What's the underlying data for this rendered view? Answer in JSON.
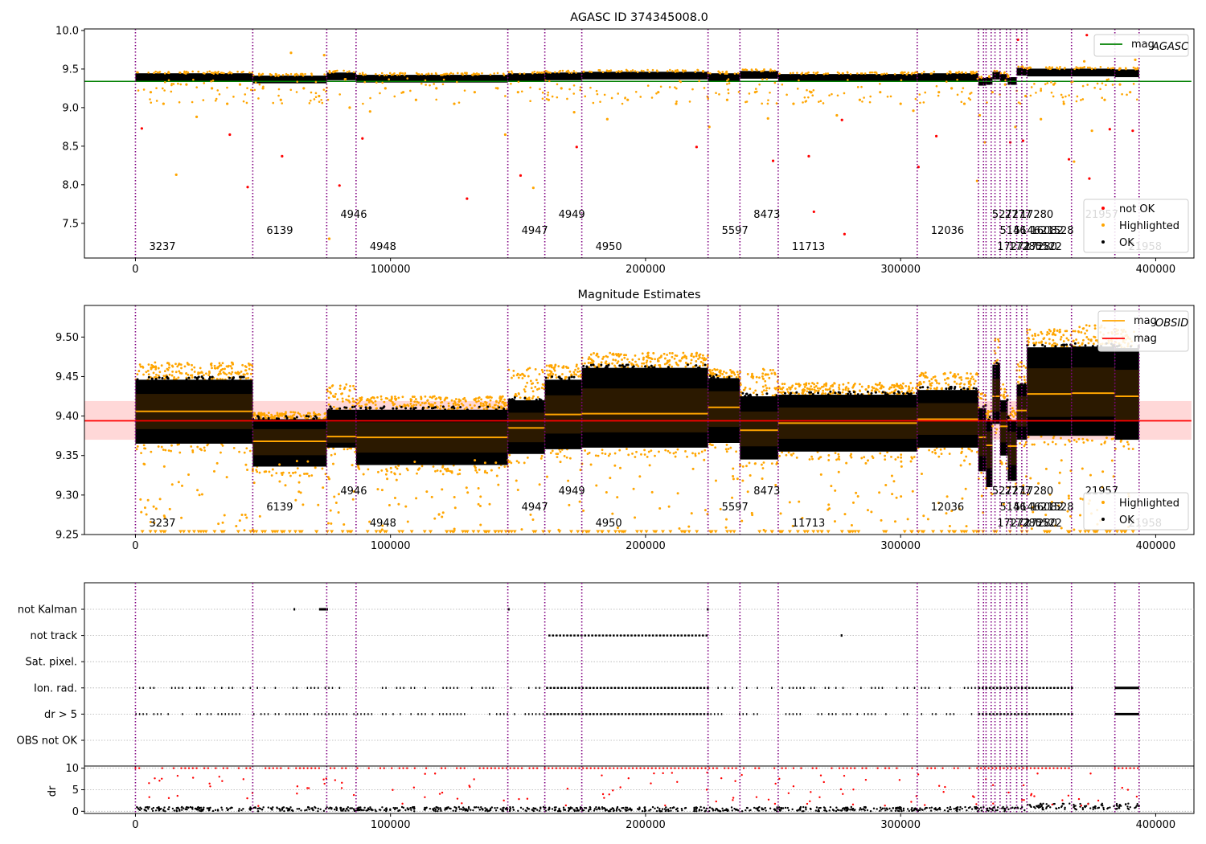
{
  "figure": {
    "background": "#ffffff"
  },
  "chart_data": [
    {
      "type": "scatter",
      "title": "AGASC ID 374345008.0",
      "xlabel": "",
      "ylabel": "",
      "xlim": [
        -20000,
        415000
      ],
      "ylim": [
        7.05,
        10.02
      ],
      "x_ticks": [
        0,
        100000,
        200000,
        300000,
        400000
      ],
      "y_ticks": [
        7.5,
        8.0,
        8.5,
        9.0,
        9.5,
        10.0
      ],
      "y_tick_labels": [
        "7.5",
        "8.0",
        "8.5",
        "9.0",
        "9.5",
        "10.0"
      ],
      "legend_top": {
        "placement": "top-right",
        "entries": [
          {
            "label": "mag",
            "sub": "AGASC",
            "color": "#008000",
            "kind": "line"
          }
        ]
      },
      "legend_bottom": {
        "placement": "bottom-right",
        "entries": [
          {
            "label": "not OK",
            "color": "#ff0000",
            "kind": "dot"
          },
          {
            "label": "Highlighted",
            "color": "#ffa500",
            "kind": "dot"
          },
          {
            "label": "OK",
            "color": "#000000",
            "kind": "dot"
          }
        ]
      },
      "agasc_mag": 9.34,
      "ok_band": {
        "color": "#000000"
      },
      "highlighted_points": [
        [
          6000,
          9.2
        ],
        [
          11000,
          9.05
        ],
        [
          16000,
          8.13
        ],
        [
          20000,
          9.3
        ],
        [
          24000,
          8.88
        ],
        [
          30000,
          9.25
        ],
        [
          36000,
          9.05
        ],
        [
          41000,
          9.3
        ],
        [
          50000,
          9.25
        ],
        [
          57000,
          9.1
        ],
        [
          61000,
          9.71
        ],
        [
          66000,
          9.25
        ],
        [
          72000,
          9.15
        ],
        [
          74000,
          9.68
        ],
        [
          76000,
          7.3
        ],
        [
          84000,
          9.0
        ],
        [
          92000,
          8.95
        ],
        [
          98000,
          9.25
        ],
        [
          105000,
          9.2
        ],
        [
          110000,
          9.1
        ],
        [
          118000,
          9.25
        ],
        [
          125000,
          9.05
        ],
        [
          133000,
          9.2
        ],
        [
          142000,
          9.25
        ],
        [
          145000,
          8.65
        ],
        [
          150000,
          9.2
        ],
        [
          156000,
          7.96
        ],
        [
          162000,
          9.1
        ],
        [
          167000,
          9.25
        ],
        [
          172000,
          8.94
        ],
        [
          185000,
          8.85
        ],
        [
          193000,
          9.1
        ],
        [
          205000,
          9.2
        ],
        [
          212000,
          9.05
        ],
        [
          225000,
          8.75
        ],
        [
          232000,
          9.1
        ],
        [
          243000,
          9.2
        ],
        [
          248000,
          8.86
        ],
        [
          258000,
          9.05
        ],
        [
          265000,
          9.2
        ],
        [
          275000,
          8.9
        ],
        [
          284000,
          9.1
        ],
        [
          292000,
          9.2
        ],
        [
          300000,
          9.05
        ],
        [
          305000,
          8.96
        ],
        [
          315000,
          9.2
        ],
        [
          320000,
          9.25
        ],
        [
          325000,
          9.05
        ],
        [
          330000,
          8.05
        ],
        [
          331000,
          8.9
        ],
        [
          333000,
          8.55
        ],
        [
          336000,
          9.2
        ],
        [
          341000,
          9.3
        ],
        [
          345000,
          8.75
        ],
        [
          349000,
          9.15
        ],
        [
          355000,
          8.85
        ],
        [
          360000,
          9.3
        ],
        [
          364000,
          9.05
        ],
        [
          368000,
          8.3
        ],
        [
          372000,
          9.6
        ],
        [
          375000,
          8.7
        ],
        [
          380000,
          9.1
        ],
        [
          386000,
          9.3
        ],
        [
          390000,
          9.2
        ],
        [
          392000,
          9.62
        ]
      ],
      "not_ok_points": [
        [
          2500,
          8.73
        ],
        [
          37000,
          8.65
        ],
        [
          44000,
          7.97
        ],
        [
          57500,
          8.37
        ],
        [
          80000,
          7.99
        ],
        [
          89000,
          8.6
        ],
        [
          130000,
          7.82
        ],
        [
          151000,
          8.12
        ],
        [
          173000,
          8.49
        ],
        [
          220000,
          8.49
        ],
        [
          250000,
          8.31
        ],
        [
          264000,
          8.37
        ],
        [
          266000,
          7.65
        ],
        [
          277000,
          8.84
        ],
        [
          278000,
          7.36
        ],
        [
          307000,
          8.23
        ],
        [
          314000,
          8.63
        ],
        [
          343000,
          8.55
        ],
        [
          346000,
          9.88
        ],
        [
          348000,
          8.57
        ],
        [
          366000,
          8.33
        ],
        [
          373000,
          9.94
        ],
        [
          374000,
          8.08
        ],
        [
          382000,
          8.72
        ],
        [
          391000,
          8.7
        ]
      ]
    },
    {
      "type": "scatter",
      "title": "Magnitude Estimates",
      "xlabel": "",
      "ylabel": "",
      "xlim": [
        -20000,
        415000
      ],
      "ylim": [
        9.25,
        9.54
      ],
      "x_ticks": [
        0,
        100000,
        200000,
        300000,
        400000
      ],
      "y_ticks": [
        9.25,
        9.3,
        9.35,
        9.4,
        9.45,
        9.5
      ],
      "y_tick_labels": [
        "9.25",
        "9.30",
        "9.35",
        "9.40",
        "9.45",
        "9.50"
      ],
      "legend_top": {
        "placement": "top-right",
        "entries": [
          {
            "label": "mag",
            "sub": "OBSID",
            "color": "#ffa500",
            "kind": "line"
          },
          {
            "label": "mag",
            "sub": "",
            "color": "#ff0000",
            "kind": "line"
          }
        ]
      },
      "legend_bottom": {
        "placement": "bottom-right",
        "entries": [
          {
            "label": "Highlighted",
            "color": "#ffa500",
            "kind": "dot"
          },
          {
            "label": "OK",
            "color": "#000000",
            "kind": "dot"
          }
        ]
      },
      "mag": 9.394,
      "mag_band": [
        9.37,
        9.419
      ],
      "obsid_segments": [
        {
          "x0": 0,
          "x1": 46000,
          "mean": 9.406,
          "lo": 9.365,
          "hi": 9.446,
          "hl_hi": 9.468
        },
        {
          "x0": 46000,
          "x1": 75000,
          "mean": 9.368,
          "lo": 9.336,
          "hi": 9.396,
          "hl_hi": 9.405
        },
        {
          "x0": 75000,
          "x1": 86500,
          "mean": 9.374,
          "lo": 9.36,
          "hi": 9.408,
          "hl_hi": 9.44
        },
        {
          "x0": 86500,
          "x1": 146000,
          "mean": 9.373,
          "lo": 9.338,
          "hi": 9.408,
          "hl_hi": 9.425
        },
        {
          "x0": 146000,
          "x1": 160500,
          "mean": 9.385,
          "lo": 9.352,
          "hi": 9.42,
          "hl_hi": 9.462
        },
        {
          "x0": 160500,
          "x1": 175000,
          "mean": 9.402,
          "lo": 9.358,
          "hi": 9.446,
          "hl_hi": 9.465
        },
        {
          "x0": 175000,
          "x1": 224500,
          "mean": 9.403,
          "lo": 9.36,
          "hi": 9.461,
          "hl_hi": 9.48
        },
        {
          "x0": 224500,
          "x1": 237000,
          "mean": 9.411,
          "lo": 9.366,
          "hi": 9.448,
          "hl_hi": 9.46
        },
        {
          "x0": 237000,
          "x1": 252000,
          "mean": 9.382,
          "lo": 9.345,
          "hi": 9.425,
          "hl_hi": 9.46
        },
        {
          "x0": 252000,
          "x1": 306500,
          "mean": 9.391,
          "lo": 9.355,
          "hi": 9.427,
          "hl_hi": 9.442
        },
        {
          "x0": 306500,
          "x1": 330500,
          "mean": 9.396,
          "lo": 9.36,
          "hi": 9.433,
          "hl_hi": 9.455
        },
        {
          "x0": 330500,
          "x1": 333500,
          "mean": 9.373,
          "lo": 9.33,
          "hi": 9.41,
          "hl_hi": 9.43
        },
        {
          "x0": 333500,
          "x1": 336000,
          "mean": 9.363,
          "lo": 9.31,
          "hi": 9.395,
          "hl_hi": 9.41
        },
        {
          "x0": 336000,
          "x1": 339000,
          "mean": 9.425,
          "lo": 9.39,
          "hi": 9.465,
          "hl_hi": 9.51
        },
        {
          "x0": 339000,
          "x1": 342000,
          "mean": 9.387,
          "lo": 9.35,
          "hi": 9.42,
          "hl_hi": 9.44
        },
        {
          "x0": 342000,
          "x1": 345500,
          "mean": 9.362,
          "lo": 9.318,
          "hi": 9.395,
          "hl_hi": 9.41
        },
        {
          "x0": 345500,
          "x1": 349500,
          "mean": 9.407,
          "lo": 9.37,
          "hi": 9.44,
          "hl_hi": 9.47
        },
        {
          "x0": 349500,
          "x1": 367000,
          "mean": 9.428,
          "lo": 9.375,
          "hi": 9.487,
          "hl_hi": 9.51
        },
        {
          "x0": 367000,
          "x1": 384000,
          "mean": 9.429,
          "lo": 9.375,
          "hi": 9.488,
          "hl_hi": 9.515
        },
        {
          "x0": 384000,
          "x1": 393500,
          "mean": 9.425,
          "lo": 9.37,
          "hi": 9.486,
          "hl_hi": 9.51
        }
      ]
    },
    {
      "type": "scatter",
      "title": "",
      "xlabel": "",
      "ylabel": "",
      "xlim": [
        -20000,
        415000
      ],
      "categories": [
        "not Kalman",
        "not track",
        "Sat. pixel.",
        "Ion. rad.",
        "dr > 5",
        "OBS not OK"
      ],
      "flag_ranges": {
        "not Kalman": [
          [
            62000,
            62600
          ],
          [
            72000,
            75500
          ],
          [
            146000,
            146700
          ],
          [
            224000,
            224800
          ]
        ],
        "not track": [
          [
            160500,
            224500
          ],
          [
            276500,
            277200
          ]
        ],
        "Sat. pixel.": [],
        "Ion. rad.": [
          [
            0,
            367000
          ],
          [
            384000,
            393500
          ]
        ],
        "dr > 5": [
          [
            0,
            367000
          ],
          [
            384000,
            393500
          ]
        ],
        "OBS not OK": []
      }
    },
    {
      "type": "scatter",
      "title": "",
      "xlabel": "",
      "ylabel": "dr",
      "xlim": [
        -20000,
        415000
      ],
      "ylim": [
        -0.5,
        10.5
      ],
      "y_ticks": [
        0,
        5,
        10
      ],
      "y_tick_labels": [
        "0",
        "5",
        "10"
      ],
      "x_ticks": [
        0,
        100000,
        200000,
        300000,
        400000
      ],
      "dr_red_value": 10,
      "dr_red_ranges": [
        [
          0,
          367000
        ],
        [
          384000,
          393500
        ]
      ]
    }
  ],
  "axes": {
    "x_tick_labels": [
      "0",
      "100000",
      "200000",
      "300000",
      "400000"
    ]
  },
  "obsids": [
    {
      "x": 0,
      "label": "3237",
      "row": 3
    },
    {
      "x": 46000,
      "label": "6139",
      "row": 2
    },
    {
      "x": 75000,
      "label": "4946",
      "row": 1
    },
    {
      "x": 86500,
      "label": "4948",
      "row": 3
    },
    {
      "x": 146000,
      "label": "4947",
      "row": 2
    },
    {
      "x": 160500,
      "label": "4949",
      "row": 1
    },
    {
      "x": 175000,
      "label": "4950",
      "row": 3
    },
    {
      "x": 224500,
      "label": "5597",
      "row": 2
    },
    {
      "x": 237000,
      "label": "8473",
      "row": 1
    },
    {
      "x": 252000,
      "label": "11713",
      "row": 3
    },
    {
      "x": 306500,
      "label": "12036",
      "row": 2
    },
    {
      "x": 330500,
      "label": "5272",
      "row": 1
    },
    {
      "x": 332500,
      "label": "17272",
      "row": 3
    },
    {
      "x": 333500,
      "label": "5146",
      "row": 2
    },
    {
      "x": 335500,
      "label": "2777",
      "row": 1
    },
    {
      "x": 337000,
      "label": "17280",
      "row": 3
    },
    {
      "x": 339000,
      "label": "5146",
      "row": 2
    },
    {
      "x": 341500,
      "label": "17280",
      "row": 1
    },
    {
      "x": 343000,
      "label": "17280",
      "row": 3
    },
    {
      "x": 345500,
      "label": "16082",
      "row": 2
    },
    {
      "x": 347500,
      "label": "5522",
      "row": 3
    },
    {
      "x": 349500,
      "label": "21528",
      "row": 2
    },
    {
      "x": 367000,
      "label": "21957",
      "row": 1
    },
    {
      "x": 384000,
      "label": "21958",
      "row": 3
    },
    {
      "x": 393500,
      "label": "",
      "row": 0
    }
  ],
  "colors": {
    "ok": "#000000",
    "highlighted": "#ffa500",
    "not_ok": "#ff0000",
    "obsid_line": "#800080",
    "agasc_line": "#008000",
    "mag_line": "#ff0000",
    "mag_band": "#ffd8d8"
  }
}
